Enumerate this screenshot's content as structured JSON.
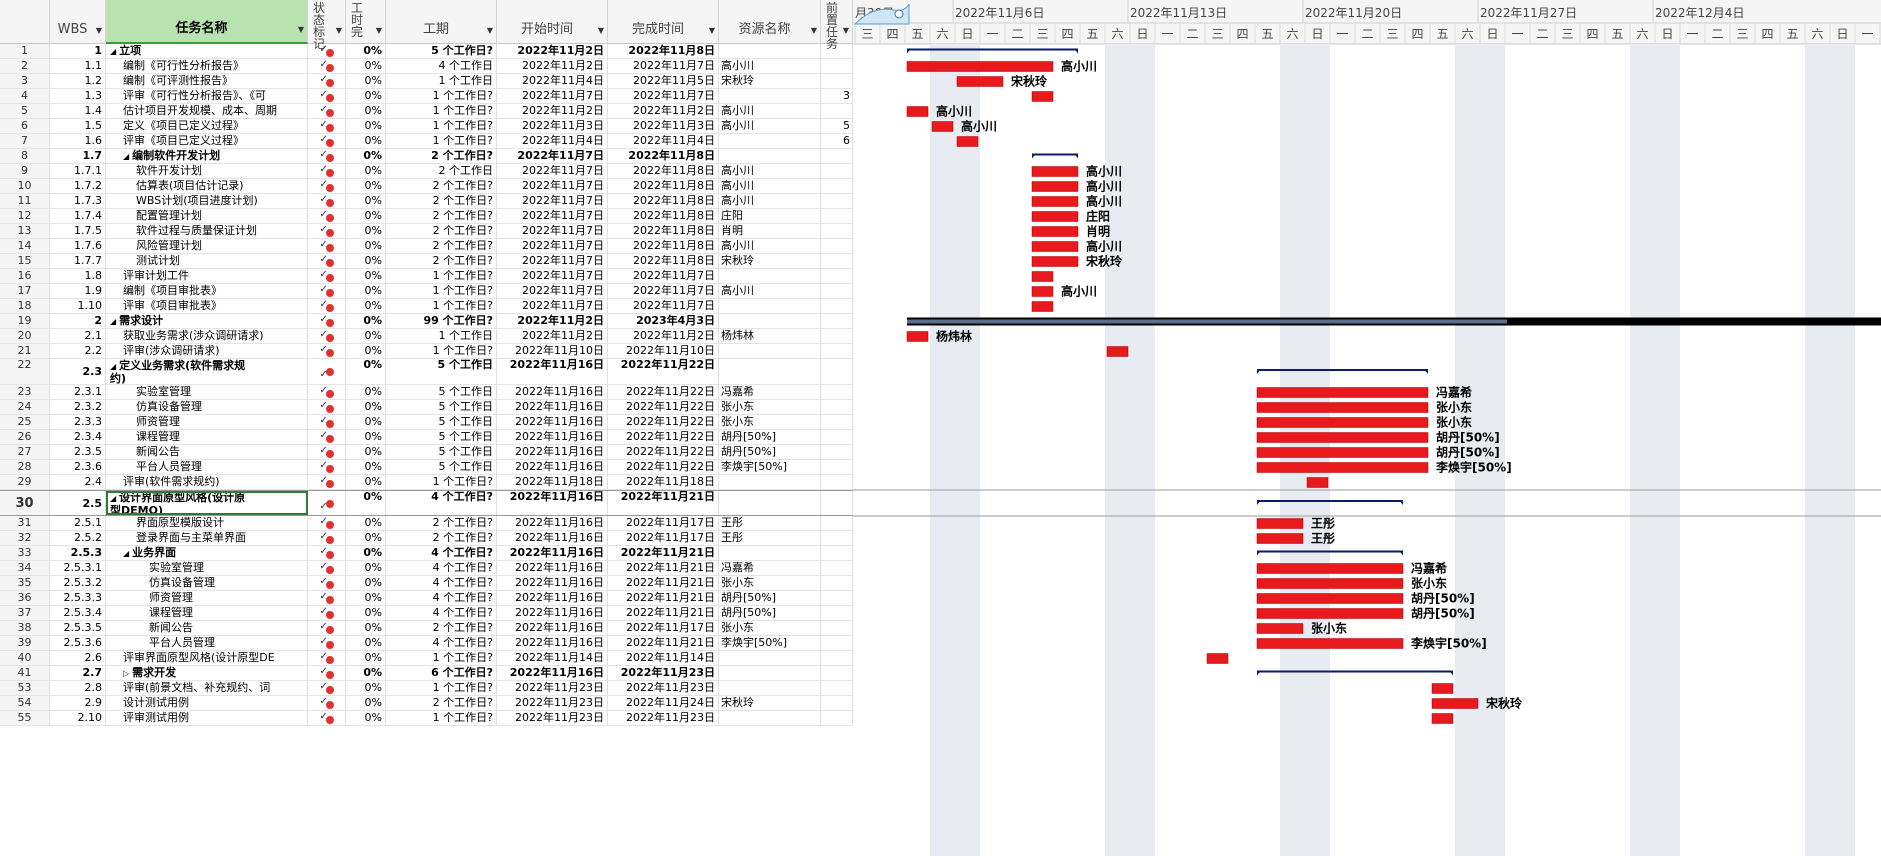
{
  "columns": {
    "num": "",
    "wbs": "WBS",
    "name": "任务名称",
    "status": "状态标记",
    "pct": "工时完",
    "duration": "工期",
    "start": "开始时间",
    "finish": "完成时间",
    "resource": "资源名称",
    "pred": "前置任务"
  },
  "timescale": {
    "weeks": [
      "月30日",
      "2022年11月6日",
      "2022年11月13日",
      "2022年11月20日",
      "2022年11月27日",
      "2022年12月4日"
    ],
    "days": [
      "日",
      "一",
      "二",
      "三",
      "四",
      "五",
      "六"
    ]
  },
  "colors": {
    "bar": "#e8191c",
    "summary_bar": "#0a1a6e",
    "project_bar": "#000000",
    "header_active": "#b8e3b0"
  },
  "rows": [
    {
      "id": "1",
      "wbs": "1",
      "name": "立项",
      "summary": true,
      "tri": "◢",
      "indent": 0,
      "pct": "0%",
      "dur": "5 个工作日?",
      "start": "2022年11月2日",
      "end": "2022年11月8日",
      "res": "",
      "pred": ""
    },
    {
      "id": "2",
      "wbs": "1.1",
      "name": "编制《可行性分析报告》",
      "indent": 1,
      "pct": "0%",
      "dur": "4 个工作日",
      "start": "2022年11月2日",
      "end": "2022年11月7日",
      "res": "高小川",
      "pred": ""
    },
    {
      "id": "3",
      "wbs": "1.2",
      "name": "编制《可评测性报告》",
      "indent": 1,
      "pct": "0%",
      "dur": "1 个工作日",
      "start": "2022年11月4日",
      "end": "2022年11月5日",
      "res": "宋秋玲",
      "pred": ""
    },
    {
      "id": "4",
      "wbs": "1.3",
      "name": "评审《可行性分析报告》、《可",
      "indent": 1,
      "pct": "0%",
      "dur": "1 个工作日?",
      "start": "2022年11月7日",
      "end": "2022年11月7日",
      "res": "",
      "pred": "3"
    },
    {
      "id": "5",
      "wbs": "1.4",
      "name": "估计项目开发规模、成本、周期",
      "indent": 1,
      "pct": "0%",
      "dur": "1 个工作日?",
      "start": "2022年11月2日",
      "end": "2022年11月2日",
      "res": "高小川",
      "pred": ""
    },
    {
      "id": "6",
      "wbs": "1.5",
      "name": "定义《项目已定义过程》",
      "indent": 1,
      "pct": "0%",
      "dur": "1 个工作日?",
      "start": "2022年11月3日",
      "end": "2022年11月3日",
      "res": "高小川",
      "pred": "5"
    },
    {
      "id": "7",
      "wbs": "1.6",
      "name": "评审《项目已定义过程》",
      "indent": 1,
      "pct": "0%",
      "dur": "1 个工作日?",
      "start": "2022年11月4日",
      "end": "2022年11月4日",
      "res": "",
      "pred": "6"
    },
    {
      "id": "8",
      "wbs": "1.7",
      "name": "编制软件开发计划",
      "summary": true,
      "tri": "◢",
      "indent": 1,
      "pct": "0%",
      "dur": "2 个工作日?",
      "start": "2022年11月7日",
      "end": "2022年11月8日",
      "res": "",
      "pred": ""
    },
    {
      "id": "9",
      "wbs": "1.7.1",
      "name": "软件开发计划",
      "indent": 2,
      "pct": "0%",
      "dur": "2 个工作日",
      "start": "2022年11月7日",
      "end": "2022年11月8日",
      "res": "高小川",
      "pred": ""
    },
    {
      "id": "10",
      "wbs": "1.7.2",
      "name": "估算表(项目估计记录)",
      "indent": 2,
      "pct": "0%",
      "dur": "2 个工作日?",
      "start": "2022年11月7日",
      "end": "2022年11月8日",
      "res": "高小川",
      "pred": ""
    },
    {
      "id": "11",
      "wbs": "1.7.3",
      "name": "WBS计划(项目进度计划)",
      "indent": 2,
      "pct": "0%",
      "dur": "2 个工作日?",
      "start": "2022年11月7日",
      "end": "2022年11月8日",
      "res": "高小川",
      "pred": ""
    },
    {
      "id": "12",
      "wbs": "1.7.4",
      "name": "配置管理计划",
      "indent": 2,
      "pct": "0%",
      "dur": "2 个工作日?",
      "start": "2022年11月7日",
      "end": "2022年11月8日",
      "res": "庄阳",
      "pred": ""
    },
    {
      "id": "13",
      "wbs": "1.7.5",
      "name": "软件过程与质量保证计划",
      "indent": 2,
      "pct": "0%",
      "dur": "2 个工作日?",
      "start": "2022年11月7日",
      "end": "2022年11月8日",
      "res": "肖明",
      "pred": ""
    },
    {
      "id": "14",
      "wbs": "1.7.6",
      "name": "风险管理计划",
      "indent": 2,
      "pct": "0%",
      "dur": "2 个工作日?",
      "start": "2022年11月7日",
      "end": "2022年11月8日",
      "res": "高小川",
      "pred": ""
    },
    {
      "id": "15",
      "wbs": "1.7.7",
      "name": "测试计划",
      "indent": 2,
      "pct": "0%",
      "dur": "2 个工作日?",
      "start": "2022年11月7日",
      "end": "2022年11月8日",
      "res": "宋秋玲",
      "pred": ""
    },
    {
      "id": "16",
      "wbs": "1.8",
      "name": "评审计划工件",
      "indent": 1,
      "pct": "0%",
      "dur": "1 个工作日?",
      "start": "2022年11月7日",
      "end": "2022年11月7日",
      "res": "",
      "pred": ""
    },
    {
      "id": "17",
      "wbs": "1.9",
      "name": "编制《项目审批表》",
      "indent": 1,
      "pct": "0%",
      "dur": "1 个工作日?",
      "start": "2022年11月7日",
      "end": "2022年11月7日",
      "res": "高小川",
      "pred": ""
    },
    {
      "id": "18",
      "wbs": "1.10",
      "name": "评审《项目审批表》",
      "indent": 1,
      "pct": "0%",
      "dur": "1 个工作日?",
      "start": "2022年11月7日",
      "end": "2022年11月7日",
      "res": "",
      "pred": ""
    },
    {
      "id": "19",
      "wbs": "2",
      "name": "需求设计",
      "summary": true,
      "tri": "◢",
      "indent": 0,
      "pct": "0%",
      "dur": "99 个工作日?",
      "start": "2022年11月2日",
      "end": "2023年4月3日",
      "res": "",
      "pred": ""
    },
    {
      "id": "20",
      "wbs": "2.1",
      "name": "获取业务需求(涉众调研请求)",
      "indent": 1,
      "pct": "0%",
      "dur": "1 个工作日",
      "start": "2022年11月2日",
      "end": "2022年11月2日",
      "res": "杨炜林",
      "pred": ""
    },
    {
      "id": "21",
      "wbs": "2.2",
      "name": "评审(涉众调研请求)",
      "indent": 1,
      "pct": "0%",
      "dur": "1 个工作日?",
      "start": "2022年11月10日",
      "end": "2022年11月10日",
      "res": "",
      "pred": ""
    },
    {
      "id": "22",
      "wbs": "2.3",
      "name": "定义业务需求(软件需求规",
      "name2": "约)",
      "summary": true,
      "tri": "◢",
      "indent": 0,
      "tall": true,
      "pct": "0%",
      "dur": "5 个工作日",
      "start": "2022年11月16日",
      "end": "2022年11月22日",
      "res": "",
      "pred": ""
    },
    {
      "id": "23",
      "wbs": "2.3.1",
      "name": "实验室管理",
      "indent": 2,
      "pct": "0%",
      "dur": "5 个工作日",
      "start": "2022年11月16日",
      "end": "2022年11月22日",
      "res": "冯嘉希",
      "pred": ""
    },
    {
      "id": "24",
      "wbs": "2.3.2",
      "name": "仿真设备管理",
      "indent": 2,
      "pct": "0%",
      "dur": "5 个工作日",
      "start": "2022年11月16日",
      "end": "2022年11月22日",
      "res": "张小东",
      "pred": ""
    },
    {
      "id": "25",
      "wbs": "2.3.3",
      "name": "师资管理",
      "indent": 2,
      "pct": "0%",
      "dur": "5 个工作日",
      "start": "2022年11月16日",
      "end": "2022年11月22日",
      "res": "张小东",
      "pred": ""
    },
    {
      "id": "26",
      "wbs": "2.3.4",
      "name": "课程管理",
      "indent": 2,
      "pct": "0%",
      "dur": "5 个工作日",
      "start": "2022年11月16日",
      "end": "2022年11月22日",
      "res": "胡丹[50%]",
      "pred": ""
    },
    {
      "id": "27",
      "wbs": "2.3.5",
      "name": "新闻公告",
      "indent": 2,
      "pct": "0%",
      "dur": "5 个工作日",
      "start": "2022年11月16日",
      "end": "2022年11月22日",
      "res": "胡丹[50%]",
      "pred": ""
    },
    {
      "id": "28",
      "wbs": "2.3.6",
      "name": "平台人员管理",
      "indent": 2,
      "pct": "0%",
      "dur": "5 个工作日",
      "start": "2022年11月16日",
      "end": "2022年11月22日",
      "res": "李焕宇[50%]",
      "pred": ""
    },
    {
      "id": "29",
      "wbs": "2.4",
      "name": "评审(软件需求规约)",
      "indent": 1,
      "pct": "0%",
      "dur": "1 个工作日?",
      "start": "2022年11月18日",
      "end": "2022年11月18日",
      "res": "",
      "pred": ""
    },
    {
      "id": "30",
      "wbs": "2.5",
      "name": "设计界面原型风格(设计原",
      "name2": "型DEMO)",
      "summary": true,
      "tri": "◢",
      "indent": 0,
      "tall": true,
      "selected": true,
      "pct": "0%",
      "dur": "4 个工作日?",
      "start": "2022年11月16日",
      "end": "2022年11月21日",
      "res": "",
      "pred": ""
    },
    {
      "id": "31",
      "wbs": "2.5.1",
      "name": "界面原型模版设计",
      "indent": 2,
      "pct": "0%",
      "dur": "2 个工作日?",
      "start": "2022年11月16日",
      "end": "2022年11月17日",
      "res": "王彤",
      "pred": ""
    },
    {
      "id": "32",
      "wbs": "2.5.2",
      "name": "登录界面与主菜单界面",
      "indent": 2,
      "pct": "0%",
      "dur": "2 个工作日?",
      "start": "2022年11月16日",
      "end": "2022年11月17日",
      "res": "王彤",
      "pred": ""
    },
    {
      "id": "33",
      "wbs": "2.5.3",
      "name": "业务界面",
      "summary": true,
      "tri": "◢",
      "indent": 1,
      "pct": "0%",
      "dur": "4 个工作日?",
      "start": "2022年11月16日",
      "end": "2022年11月21日",
      "res": "",
      "pred": ""
    },
    {
      "id": "34",
      "wbs": "2.5.3.1",
      "name": "实验室管理",
      "indent": 3,
      "pct": "0%",
      "dur": "4 个工作日?",
      "start": "2022年11月16日",
      "end": "2022年11月21日",
      "res": "冯嘉希",
      "pred": ""
    },
    {
      "id": "35",
      "wbs": "2.5.3.2",
      "name": "仿真设备管理",
      "indent": 3,
      "pct": "0%",
      "dur": "4 个工作日?",
      "start": "2022年11月16日",
      "end": "2022年11月21日",
      "res": "张小东",
      "pred": ""
    },
    {
      "id": "36",
      "wbs": "2.5.3.3",
      "name": "师资管理",
      "indent": 3,
      "pct": "0%",
      "dur": "4 个工作日?",
      "start": "2022年11月16日",
      "end": "2022年11月21日",
      "res": "胡丹[50%]",
      "pred": ""
    },
    {
      "id": "37",
      "wbs": "2.5.3.4",
      "name": "课程管理",
      "indent": 3,
      "pct": "0%",
      "dur": "4 个工作日?",
      "start": "2022年11月16日",
      "end": "2022年11月21日",
      "res": "胡丹[50%]",
      "pred": ""
    },
    {
      "id": "38",
      "wbs": "2.5.3.5",
      "name": "新闻公告",
      "indent": 3,
      "pct": "0%",
      "dur": "2 个工作日?",
      "start": "2022年11月16日",
      "end": "2022年11月17日",
      "res": "张小东",
      "pred": ""
    },
    {
      "id": "39",
      "wbs": "2.5.3.6",
      "name": "平台人员管理",
      "indent": 3,
      "pct": "0%",
      "dur": "4 个工作日?",
      "start": "2022年11月16日",
      "end": "2022年11月21日",
      "res": "李焕宇[50%]",
      "pred": ""
    },
    {
      "id": "40",
      "wbs": "2.6",
      "name": "评审界面原型风格(设计原型DE",
      "indent": 1,
      "pct": "0%",
      "dur": "1 个工作日?",
      "start": "2022年11月14日",
      "end": "2022年11月14日",
      "res": "",
      "pred": ""
    },
    {
      "id": "41",
      "wbs": "2.7",
      "name": "需求开发",
      "summary": true,
      "tri": "▷",
      "indent": 1,
      "pct": "0%",
      "dur": "6 个工作日?",
      "start": "2022年11月16日",
      "end": "2022年11月23日",
      "res": "",
      "pred": ""
    },
    {
      "id": "53",
      "wbs": "2.8",
      "name": "评审(前景文档、补充规约、词",
      "indent": 1,
      "pct": "0%",
      "dur": "1 个工作日?",
      "start": "2022年11月23日",
      "end": "2022年11月23日",
      "res": "",
      "pred": ""
    },
    {
      "id": "54",
      "wbs": "2.9",
      "name": "设计测试用例",
      "indent": 1,
      "pct": "0%",
      "dur": "2 个工作日?",
      "start": "2022年11月23日",
      "end": "2022年11月24日",
      "res": "宋秋玲",
      "pred": ""
    },
    {
      "id": "55",
      "wbs": "2.10",
      "name": "评审测试用例",
      "indent": 1,
      "pct": "0%",
      "dur": "1 个工作日?",
      "start": "2022年11月23日",
      "end": "2022年11月23日",
      "res": "",
      "pred": ""
    }
  ]
}
